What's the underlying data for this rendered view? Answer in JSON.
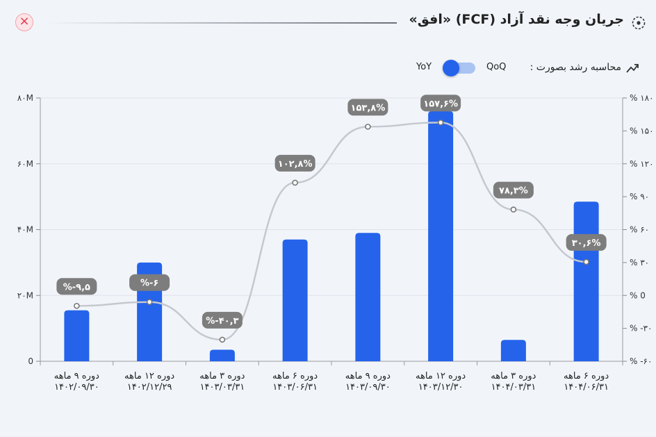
{
  "header": {
    "title": "جریان وجه نقد آزاد (FCF) «افق»",
    "close_label": "×"
  },
  "toggle": {
    "label": "محاسبه رشد بصورت :",
    "qoq_label": "QoQ",
    "yoy_label": "YoY",
    "selected": "YoY"
  },
  "colors": {
    "bar": "#2563eb",
    "line": "#c5c8ce",
    "label_bg": "#7d7d7d",
    "accent_close": "#e0384e"
  },
  "chart_data": {
    "type": "bar",
    "categories": [
      [
        "دوره ۹ ماهه",
        "۱۴۰۲/۰۹/۳۰"
      ],
      [
        "دوره ۱۲ ماهه",
        "۱۴۰۲/۱۲/۲۹"
      ],
      [
        "دوره ۳ ماهه",
        "۱۴۰۳/۰۳/۳۱"
      ],
      [
        "دوره ۶ ماهه",
        "۱۴۰۳/۰۶/۳۱"
      ],
      [
        "دوره ۹ ماهه",
        "۱۴۰۳/۰۹/۳۰"
      ],
      [
        "دوره ۱۲ ماهه",
        "۱۴۰۳/۱۲/۳۰"
      ],
      [
        "دوره ۳ ماهه",
        "۱۴۰۴/۰۳/۳۱"
      ],
      [
        "دوره ۶ ماهه",
        "۱۴۰۴/۰۶/۳۱"
      ]
    ],
    "series": [
      {
        "values": [
          15.5,
          30,
          3.5,
          37,
          39,
          76,
          6.5,
          48.5
        ]
      },
      {
        "values": [
          -9.5,
          -6,
          -40.3,
          102.8,
          153.8,
          157.6,
          78.3,
          30.6
        ],
        "labels": [
          "%-۹,۵",
          "%-۶",
          "%-۴۰,۳",
          "۱۰۲,۸%",
          "۱۵۳,۸%",
          "۱۵۷,۶%",
          "۷۸,۳%",
          "۳۰,۶%"
        ]
      }
    ],
    "left_axis": {
      "ylim": [
        0,
        80
      ],
      "ticks": [
        0,
        20,
        40,
        60,
        80
      ],
      "tick_labels": [
        "0",
        "۲۰M",
        "۴۰M",
        "۶۰M",
        "۸۰M"
      ]
    },
    "right_axis": {
      "ylim": [
        -60,
        180
      ],
      "ticks": [
        -60,
        -30,
        0,
        30,
        60,
        90,
        120,
        150,
        180
      ],
      "tick_labels": [
        "% -۶۰",
        "% -۳۰",
        "% 0",
        "% ۳۰",
        "% ۶۰",
        "% ۹۰",
        "% ۱۲۰",
        "% ۱۵۰",
        "% ۱۸۰"
      ]
    },
    "grid": true
  }
}
